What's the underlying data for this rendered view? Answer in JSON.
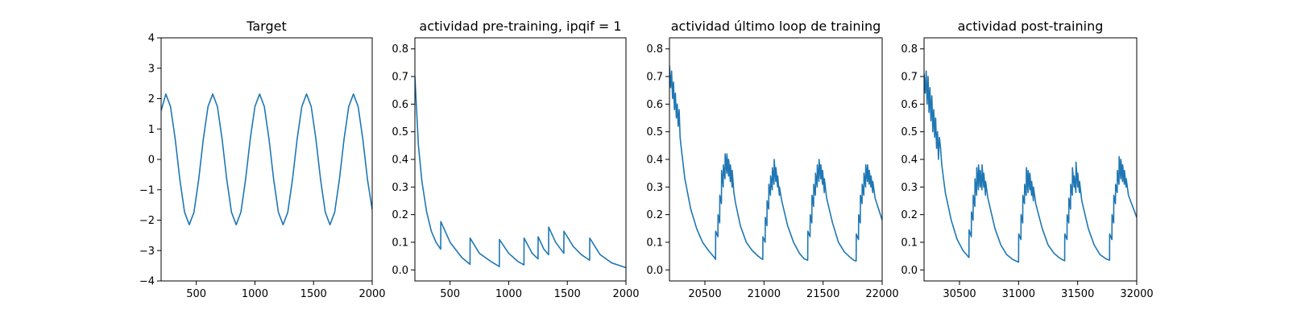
{
  "colors": {
    "series": "#1f77b4",
    "axes": "#000000",
    "background": "#ffffff"
  },
  "chart_data": [
    {
      "type": "line",
      "title": "Target",
      "xlabel": "",
      "ylabel": "",
      "xlim": [
        200,
        2000
      ],
      "ylim": [
        -4,
        4
      ],
      "xticks": [
        500,
        1000,
        1500,
        2000
      ],
      "xtick_labels": [
        "500",
        "1000",
        "1500",
        "2000"
      ],
      "yticks": [
        -4,
        -3,
        -2,
        -1,
        0,
        1,
        2,
        3,
        4
      ],
      "ytick_labels": [
        "−4",
        "−3",
        "−2",
        "−1",
        "0",
        "1",
        "2",
        "3",
        "4"
      ],
      "grid": false,
      "series": [
        {
          "x": [
            200,
            240,
            280,
            320,
            360,
            400,
            440,
            480,
            520,
            560,
            600,
            640,
            680,
            720,
            760,
            800,
            840,
            880,
            920,
            960,
            1000,
            1040,
            1080,
            1120,
            1160,
            1200,
            1240,
            1280,
            1320,
            1360,
            1400,
            1440,
            1480,
            1520,
            1560,
            1600,
            1640,
            1680,
            1720,
            1760,
            1800,
            1840,
            1880,
            1920,
            1960,
            2000
          ],
          "y": [
            1.6,
            2.15,
            1.74,
            0.67,
            -0.67,
            -1.74,
            -2.15,
            -1.74,
            -0.67,
            0.67,
            1.74,
            2.15,
            1.74,
            0.67,
            -0.67,
            -1.74,
            -2.15,
            -1.74,
            -0.67,
            0.67,
            1.74,
            2.15,
            1.74,
            0.67,
            -0.67,
            -1.74,
            -2.15,
            -1.74,
            -0.67,
            0.67,
            1.74,
            2.15,
            1.74,
            0.67,
            -0.67,
            -1.74,
            -2.15,
            -1.74,
            -0.67,
            0.67,
            1.74,
            2.15,
            1.74,
            0.67,
            -0.67,
            -1.65
          ]
        }
      ]
    },
    {
      "type": "line",
      "title": "actividad pre-training, ipqif = 1",
      "xlabel": "",
      "ylabel": "",
      "xlim": [
        200,
        2000
      ],
      "ylim": [
        -0.04,
        0.84
      ],
      "xticks": [
        500,
        1000,
        1500,
        2000
      ],
      "xtick_labels": [
        "500",
        "1000",
        "1500",
        "2000"
      ],
      "yticks": [
        0,
        0.1,
        0.2,
        0.3,
        0.4,
        0.5,
        0.6,
        0.7,
        0.8
      ],
      "ytick_labels": [
        "0.0",
        "0.1",
        "0.2",
        "0.3",
        "0.4",
        "0.5",
        "0.6",
        "0.7",
        "0.8"
      ],
      "grid": false,
      "series": [
        {
          "x": [
            200,
            230,
            260,
            300,
            340,
            380,
            420,
            421,
            500,
            600,
            670,
            671,
            750,
            850,
            920,
            921,
            1000,
            1080,
            1130,
            1131,
            1200,
            1250,
            1251,
            1300,
            1340,
            1341,
            1400,
            1470,
            1471,
            1550,
            1620,
            1690,
            1691,
            1780,
            1880,
            2000
          ],
          "y": [
            0.7,
            0.45,
            0.32,
            0.21,
            0.14,
            0.1,
            0.075,
            0.175,
            0.1,
            0.045,
            0.02,
            0.115,
            0.06,
            0.03,
            0.012,
            0.11,
            0.06,
            0.03,
            0.018,
            0.115,
            0.06,
            0.04,
            0.12,
            0.075,
            0.055,
            0.155,
            0.1,
            0.06,
            0.14,
            0.085,
            0.055,
            0.035,
            0.115,
            0.055,
            0.025,
            0.008
          ]
        }
      ]
    },
    {
      "type": "line",
      "title": "actividad último loop de training",
      "xlabel": "",
      "ylabel": "",
      "xlim": [
        20200,
        22000
      ],
      "ylim": [
        -0.04,
        0.84
      ],
      "xticks": [
        20500,
        21000,
        21500,
        22000
      ],
      "xtick_labels": [
        "20500",
        "21000",
        "21500",
        "22000"
      ],
      "yticks": [
        0,
        0.1,
        0.2,
        0.3,
        0.4,
        0.5,
        0.6,
        0.7,
        0.8
      ],
      "ytick_labels": [
        "0.0",
        "0.1",
        "0.2",
        "0.3",
        "0.4",
        "0.5",
        "0.6",
        "0.7",
        "0.8"
      ],
      "grid": false,
      "series": [
        {
          "x": [
            20200,
            20210,
            20218,
            20226,
            20234,
            20242,
            20250,
            20258,
            20266,
            20274,
            20282,
            20290,
            20300,
            20330,
            20380,
            20430,
            20480,
            20530,
            20580,
            20590,
            20591,
            20610,
            20611,
            20625,
            20626,
            20640,
            20641,
            20655,
            20656,
            20670,
            20671,
            20685,
            20686,
            20700,
            20701,
            20715,
            20716,
            20730,
            20731,
            20745,
            20760,
            20800,
            20850,
            20900,
            20950,
            20980,
            20990,
            20991,
            21010,
            21011,
            21025,
            21026,
            21040,
            21041,
            21055,
            21056,
            21070,
            21071,
            21085,
            21086,
            21100,
            21101,
            21115,
            21116,
            21130,
            21131,
            21150,
            21200,
            21250,
            21300,
            21340,
            21370,
            21371,
            21390,
            21391,
            21405,
            21406,
            21420,
            21421,
            21435,
            21436,
            21450,
            21451,
            21465,
            21466,
            21480,
            21481,
            21495,
            21496,
            21510,
            21511,
            21530,
            21580,
            21630,
            21680,
            21730,
            21760,
            21780,
            21781,
            21800,
            21801,
            21815,
            21816,
            21830,
            21831,
            21845,
            21846,
            21860,
            21861,
            21875,
            21876,
            21890,
            21891,
            21905,
            21906,
            21920,
            21921,
            21940,
            22000
          ],
          "y": [
            0.74,
            0.66,
            0.72,
            0.62,
            0.68,
            0.58,
            0.64,
            0.55,
            0.6,
            0.52,
            0.58,
            0.48,
            0.44,
            0.33,
            0.22,
            0.15,
            0.1,
            0.07,
            0.045,
            0.038,
            0.14,
            0.12,
            0.2,
            0.17,
            0.27,
            0.24,
            0.36,
            0.3,
            0.38,
            0.33,
            0.42,
            0.35,
            0.42,
            0.34,
            0.4,
            0.32,
            0.38,
            0.3,
            0.36,
            0.28,
            0.24,
            0.16,
            0.1,
            0.07,
            0.05,
            0.04,
            0.038,
            0.12,
            0.1,
            0.19,
            0.16,
            0.25,
            0.22,
            0.31,
            0.27,
            0.34,
            0.29,
            0.37,
            0.31,
            0.4,
            0.32,
            0.37,
            0.3,
            0.34,
            0.27,
            0.3,
            0.25,
            0.16,
            0.1,
            0.06,
            0.04,
            0.035,
            0.14,
            0.12,
            0.2,
            0.17,
            0.27,
            0.23,
            0.31,
            0.27,
            0.35,
            0.3,
            0.38,
            0.32,
            0.4,
            0.33,
            0.38,
            0.31,
            0.36,
            0.28,
            0.33,
            0.26,
            0.17,
            0.1,
            0.065,
            0.045,
            0.035,
            0.032,
            0.13,
            0.11,
            0.2,
            0.17,
            0.27,
            0.24,
            0.31,
            0.27,
            0.35,
            0.3,
            0.38,
            0.32,
            0.38,
            0.31,
            0.36,
            0.3,
            0.34,
            0.28,
            0.32,
            0.26,
            0.18
          ]
        }
      ]
    },
    {
      "type": "line",
      "title": "actividad post-training",
      "xlabel": "",
      "ylabel": "",
      "xlim": [
        30200,
        32000
      ],
      "ylim": [
        -0.04,
        0.84
      ],
      "xticks": [
        30500,
        31000,
        31500,
        32000
      ],
      "xtick_labels": [
        "30500",
        "31000",
        "31500",
        "32000"
      ],
      "yticks": [
        0,
        0.1,
        0.2,
        0.3,
        0.4,
        0.5,
        0.6,
        0.7,
        0.8
      ],
      "ytick_labels": [
        "0.0",
        "0.1",
        "0.2",
        "0.3",
        "0.4",
        "0.5",
        "0.6",
        "0.7",
        "0.8"
      ],
      "grid": false,
      "series": [
        {
          "x": [
            30200,
            30210,
            30218,
            30226,
            30234,
            30242,
            30250,
            30258,
            30266,
            30274,
            30282,
            30290,
            30298,
            30306,
            30314,
            30322,
            30330,
            30340,
            30350,
            30380,
            30430,
            30480,
            30530,
            30570,
            30580,
            30581,
            30600,
            30601,
            30615,
            30616,
            30630,
            30631,
            30645,
            30646,
            30660,
            30661,
            30675,
            30676,
            30690,
            30691,
            30705,
            30706,
            30720,
            30721,
            30740,
            30800,
            30850,
            30900,
            30950,
            30990,
            31000,
            31001,
            31020,
            31021,
            31035,
            31036,
            31050,
            31051,
            31065,
            31066,
            31080,
            31081,
            31095,
            31096,
            31110,
            31111,
            31125,
            31126,
            31145,
            31200,
            31250,
            31300,
            31350,
            31380,
            31390,
            31391,
            31410,
            31411,
            31425,
            31426,
            31440,
            31441,
            31455,
            31456,
            31470,
            31471,
            31485,
            31486,
            31500,
            31501,
            31515,
            31516,
            31535,
            31590,
            31640,
            31690,
            31740,
            31770,
            31771,
            31790,
            31791,
            31805,
            31806,
            31820,
            31821,
            31835,
            31836,
            31850,
            31851,
            31865,
            31866,
            31880,
            31881,
            31895,
            31896,
            31910,
            31911,
            31930,
            32000
          ],
          "y": [
            0.71,
            0.64,
            0.72,
            0.6,
            0.7,
            0.57,
            0.66,
            0.54,
            0.63,
            0.5,
            0.58,
            0.48,
            0.55,
            0.44,
            0.5,
            0.4,
            0.48,
            0.44,
            0.38,
            0.28,
            0.18,
            0.11,
            0.07,
            0.05,
            0.045,
            0.145,
            0.12,
            0.21,
            0.18,
            0.27,
            0.23,
            0.33,
            0.27,
            0.37,
            0.29,
            0.38,
            0.3,
            0.36,
            0.29,
            0.38,
            0.3,
            0.35,
            0.27,
            0.32,
            0.26,
            0.15,
            0.09,
            0.055,
            0.038,
            0.03,
            0.028,
            0.13,
            0.11,
            0.2,
            0.17,
            0.27,
            0.24,
            0.31,
            0.27,
            0.37,
            0.28,
            0.36,
            0.29,
            0.35,
            0.27,
            0.32,
            0.25,
            0.3,
            0.24,
            0.15,
            0.09,
            0.06,
            0.042,
            0.035,
            0.033,
            0.13,
            0.11,
            0.2,
            0.17,
            0.26,
            0.22,
            0.31,
            0.27,
            0.37,
            0.3,
            0.34,
            0.28,
            0.39,
            0.3,
            0.35,
            0.28,
            0.32,
            0.25,
            0.15,
            0.09,
            0.055,
            0.04,
            0.035,
            0.13,
            0.11,
            0.2,
            0.17,
            0.27,
            0.24,
            0.31,
            0.28,
            0.36,
            0.31,
            0.41,
            0.33,
            0.4,
            0.32,
            0.38,
            0.31,
            0.36,
            0.3,
            0.33,
            0.27,
            0.19
          ]
        }
      ]
    }
  ]
}
